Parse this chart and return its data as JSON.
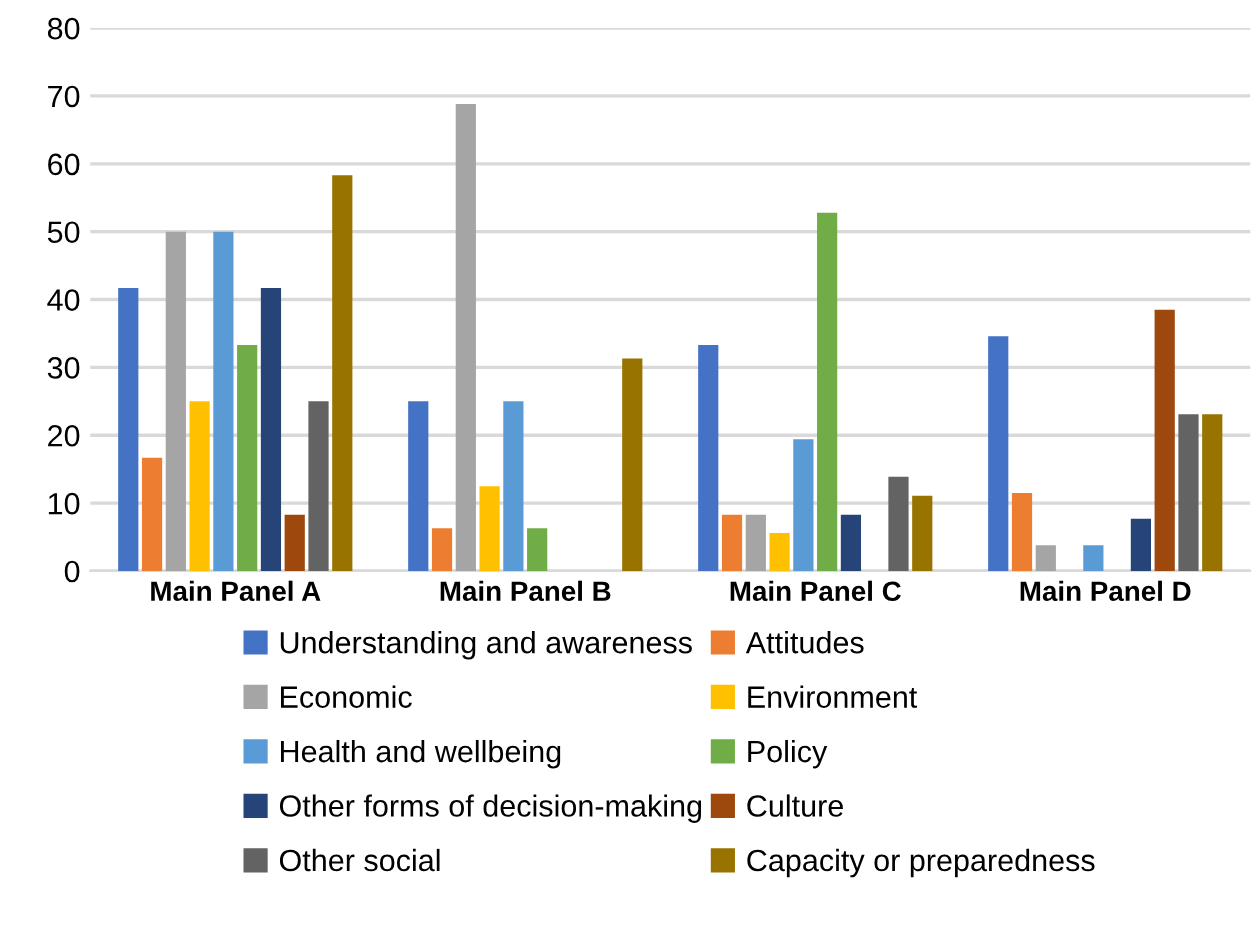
{
  "chart_data": {
    "type": "bar",
    "categories": [
      "Main Panel A",
      "Main Panel B",
      "Main Panel C",
      "Main Panel D"
    ],
    "series": [
      {
        "name": "Understanding and awareness",
        "color": "#4472c4",
        "values": [
          41.7,
          25,
          33.3,
          34.6
        ]
      },
      {
        "name": "Attitudes",
        "color": "#ed7d31",
        "values": [
          16.7,
          6.3,
          8.3,
          11.5
        ]
      },
      {
        "name": "Economic",
        "color": "#a5a5a5",
        "values": [
          50,
          68.8,
          8.3,
          3.8
        ]
      },
      {
        "name": "Environment",
        "color": "#ffc000",
        "values": [
          25,
          12.5,
          5.6,
          0
        ]
      },
      {
        "name": "Health and wellbeing",
        "color": "#5b9bd5",
        "values": [
          50,
          25,
          19.4,
          3.8
        ]
      },
      {
        "name": "Policy",
        "color": "#70ad47",
        "values": [
          33.3,
          6.3,
          52.8,
          0
        ]
      },
      {
        "name": "Other forms of decision-making",
        "color": "#264478",
        "values": [
          41.7,
          0,
          8.3,
          7.7
        ]
      },
      {
        "name": "Culture",
        "color": "#9e480e",
        "values": [
          8.3,
          0,
          0,
          38.5
        ]
      },
      {
        "name": "Other social",
        "color": "#636363",
        "values": [
          25,
          0,
          13.9,
          23.1
        ]
      },
      {
        "name": "Capacity or preparedness",
        "color": "#997300",
        "values": [
          58.3,
          31.3,
          11.1,
          23.1
        ]
      }
    ],
    "ylim": [
      0,
      80
    ],
    "yticks": [
      0,
      10,
      20,
      30,
      40,
      50,
      60,
      70,
      80
    ],
    "grid": "y",
    "legend": "bottom"
  }
}
